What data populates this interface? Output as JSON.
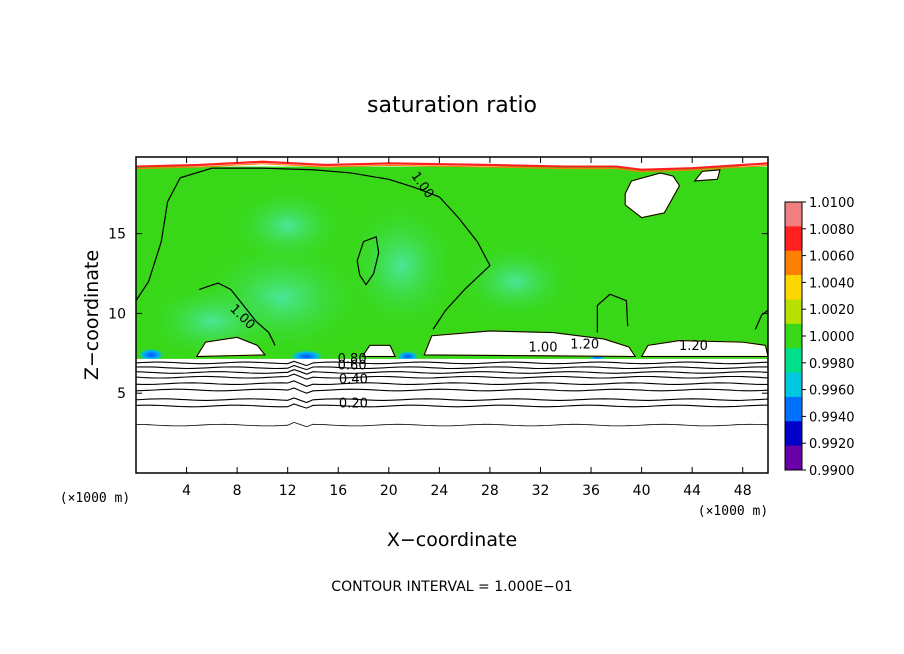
{
  "chart_data": {
    "type": "heatmap",
    "title": "saturation ratio",
    "xlabel": "X−coordinate",
    "ylabel": "Z−coordinate",
    "x_unit": "(×1000 m)",
    "x_unit_right": "(×1000 m)",
    "xlim": [
      0,
      50
    ],
    "ylim": [
      0,
      19.8
    ],
    "x_ticks": [
      4,
      8,
      12,
      16,
      20,
      24,
      28,
      32,
      36,
      40,
      44,
      48
    ],
    "y_ticks": [
      5,
      10,
      15
    ],
    "footer": "CONTOUR INTERVAL = 1.000E−01",
    "colorbar": {
      "labels": [
        "1.0100",
        "1.0080",
        "1.0060",
        "1.0040",
        "1.0020",
        "1.0000",
        "0.9980",
        "0.9960",
        "0.9940",
        "0.9920",
        "0.9900"
      ],
      "colors": [
        "#f08080",
        "#ff2020",
        "#ff7f00",
        "#ffd700",
        "#b8e000",
        "#38d818",
        "#00e08a",
        "#00c8e0",
        "#0070ff",
        "#0000c8",
        "#6a00a8"
      ]
    },
    "contour_levels": [
      0.2,
      0.4,
      0.6,
      0.8,
      1.0,
      1.2
    ],
    "contour_labels": [
      {
        "text": "1.00",
        "x": 22.4,
        "y": 17.9,
        "angle": 55
      },
      {
        "text": "1.00",
        "x": 8.2,
        "y": 9.6,
        "angle": 45
      },
      {
        "text": "0.80",
        "x": 17.1,
        "y": 6.9,
        "angle": 0
      },
      {
        "text": "0.60",
        "x": 17.1,
        "y": 6.5,
        "angle": 0
      },
      {
        "text": "0.40",
        "x": 17.2,
        "y": 5.6,
        "angle": 0
      },
      {
        "text": "0.20",
        "x": 17.2,
        "y": 4.1,
        "angle": 0
      },
      {
        "text": "1.00",
        "x": 32.2,
        "y": 7.6,
        "angle": 0
      },
      {
        "text": "1.20",
        "x": 35.5,
        "y": 7.8,
        "angle": 0
      },
      {
        "text": "1.20",
        "x": 44.1,
        "y": 7.7,
        "angle": 0
      }
    ],
    "subsaturated_layers_z": [
      6.9,
      6.6,
      6.3,
      6.0,
      5.6,
      5.2,
      4.6,
      4.2,
      3.0
    ]
  }
}
